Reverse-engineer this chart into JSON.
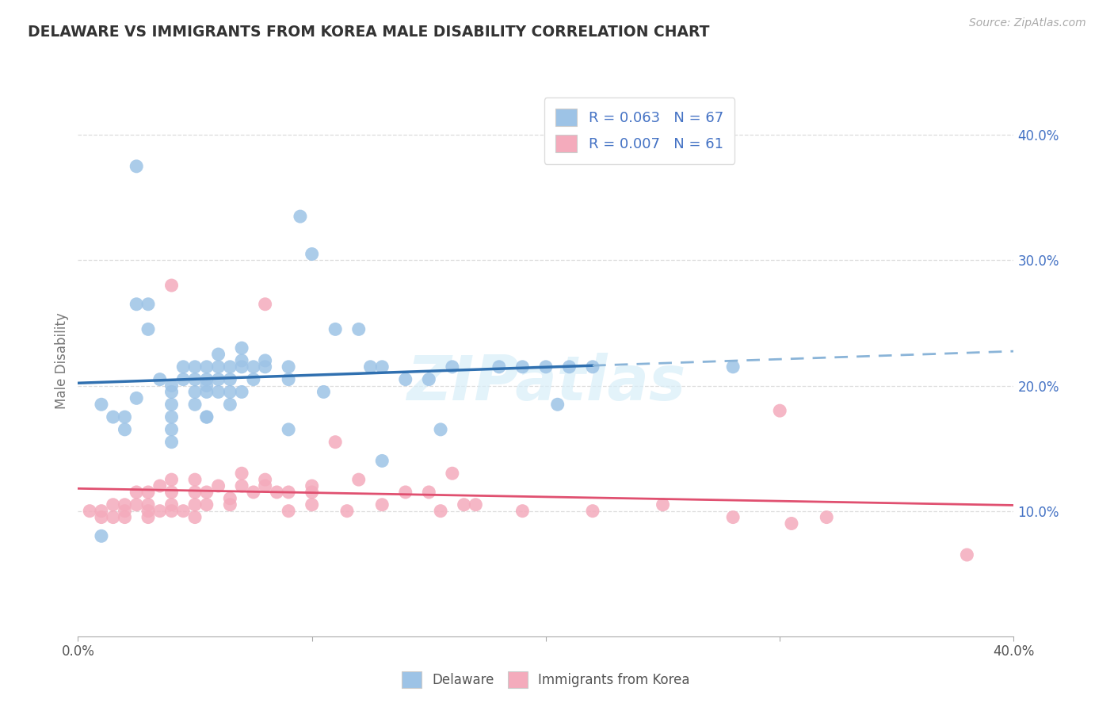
{
  "title": "DELAWARE VS IMMIGRANTS FROM KOREA MALE DISABILITY CORRELATION CHART",
  "source": "Source: ZipAtlas.com",
  "ylabel": "Male Disability",
  "xlim": [
    0.0,
    0.4
  ],
  "ylim": [
    0.0,
    0.44
  ],
  "delaware_color": "#9DC3E6",
  "korea_color": "#F4ABBC",
  "trend_blue": "#3070B0",
  "trend_blue_dashed": "#8AB4D8",
  "trend_pink": "#E05070",
  "delaware_R": 0.063,
  "delaware_N": 67,
  "korea_R": 0.007,
  "korea_N": 61,
  "legend_labels": [
    "Delaware",
    "Immigrants from Korea"
  ],
  "watermark": "ZIPatlas",
  "delaware_x": [
    0.01,
    0.015,
    0.02,
    0.02,
    0.025,
    0.025,
    0.03,
    0.03,
    0.035,
    0.04,
    0.04,
    0.04,
    0.04,
    0.04,
    0.04,
    0.045,
    0.045,
    0.05,
    0.05,
    0.05,
    0.05,
    0.055,
    0.055,
    0.055,
    0.055,
    0.055,
    0.06,
    0.06,
    0.06,
    0.06,
    0.065,
    0.065,
    0.065,
    0.065,
    0.07,
    0.07,
    0.07,
    0.07,
    0.075,
    0.075,
    0.08,
    0.08,
    0.09,
    0.09,
    0.095,
    0.1,
    0.105,
    0.11,
    0.12,
    0.125,
    0.13,
    0.14,
    0.15,
    0.155,
    0.16,
    0.18,
    0.19,
    0.2,
    0.205,
    0.21,
    0.22,
    0.025,
    0.13,
    0.09,
    0.28,
    0.01,
    0.055
  ],
  "delaware_y": [
    0.185,
    0.175,
    0.175,
    0.165,
    0.265,
    0.19,
    0.265,
    0.245,
    0.205,
    0.2,
    0.195,
    0.185,
    0.175,
    0.165,
    0.155,
    0.215,
    0.205,
    0.215,
    0.205,
    0.195,
    0.185,
    0.215,
    0.205,
    0.2,
    0.195,
    0.175,
    0.225,
    0.215,
    0.205,
    0.195,
    0.215,
    0.205,
    0.195,
    0.185,
    0.23,
    0.22,
    0.215,
    0.195,
    0.215,
    0.205,
    0.22,
    0.215,
    0.215,
    0.205,
    0.335,
    0.305,
    0.195,
    0.245,
    0.245,
    0.215,
    0.215,
    0.205,
    0.205,
    0.165,
    0.215,
    0.215,
    0.215,
    0.215,
    0.185,
    0.215,
    0.215,
    0.375,
    0.14,
    0.165,
    0.215,
    0.08,
    0.175
  ],
  "korea_x": [
    0.005,
    0.01,
    0.01,
    0.015,
    0.015,
    0.02,
    0.02,
    0.02,
    0.025,
    0.025,
    0.03,
    0.03,
    0.03,
    0.03,
    0.035,
    0.035,
    0.04,
    0.04,
    0.04,
    0.04,
    0.045,
    0.05,
    0.05,
    0.05,
    0.05,
    0.055,
    0.055,
    0.06,
    0.065,
    0.065,
    0.07,
    0.07,
    0.075,
    0.08,
    0.08,
    0.085,
    0.09,
    0.09,
    0.1,
    0.1,
    0.1,
    0.11,
    0.115,
    0.12,
    0.13,
    0.14,
    0.15,
    0.155,
    0.16,
    0.165,
    0.17,
    0.19,
    0.22,
    0.25,
    0.28,
    0.3,
    0.305,
    0.32,
    0.38,
    0.04,
    0.08
  ],
  "korea_y": [
    0.1,
    0.1,
    0.095,
    0.105,
    0.095,
    0.105,
    0.1,
    0.095,
    0.115,
    0.105,
    0.115,
    0.105,
    0.1,
    0.095,
    0.12,
    0.1,
    0.125,
    0.115,
    0.105,
    0.1,
    0.1,
    0.125,
    0.115,
    0.105,
    0.095,
    0.115,
    0.105,
    0.12,
    0.11,
    0.105,
    0.13,
    0.12,
    0.115,
    0.125,
    0.12,
    0.115,
    0.115,
    0.1,
    0.12,
    0.115,
    0.105,
    0.155,
    0.1,
    0.125,
    0.105,
    0.115,
    0.115,
    0.1,
    0.13,
    0.105,
    0.105,
    0.1,
    0.1,
    0.105,
    0.095,
    0.18,
    0.09,
    0.095,
    0.065,
    0.28,
    0.265
  ]
}
